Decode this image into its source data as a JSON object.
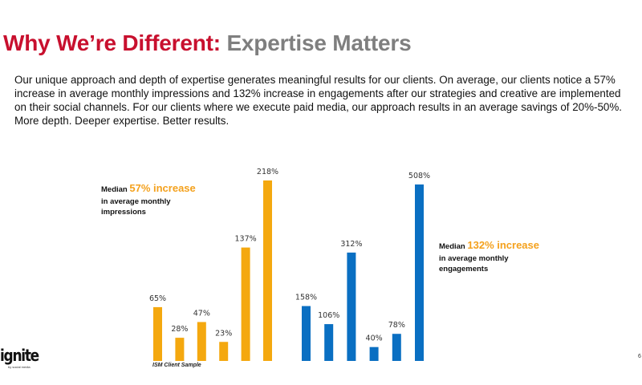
{
  "title": {
    "part1": "Why We’re Different:",
    "part2": "Expertise Matters"
  },
  "body": "Our unique approach and depth of expertise generates meaningful results for our clients. On average, our clients notice a 57% increase in average monthly impressions and 132% increase in engagements after our strategies and creative are implemented on their social channels. For our clients where we execute paid media, our approach results in an average savings of 20%-50%. More depth. Deeper expertise. Better results.",
  "notes": {
    "impressions": {
      "prefix": "Median",
      "highlight": "57% increase",
      "line2": "in average monthly",
      "line3": "impressions"
    },
    "engagements": {
      "prefix": "Median",
      "highlight": "132% increase",
      "line2": "in average monthly",
      "line3": "engagements"
    }
  },
  "sample_label": "ISM Client Sample",
  "page_number": "6",
  "logo": {
    "text": "ignite",
    "subtext": "by social media"
  },
  "chart_data": {
    "type": "bar",
    "grid": false,
    "series": [
      {
        "values": [
          65,
          28,
          47,
          23,
          137,
          218
        ],
        "labels": [
          "65%",
          "28%",
          "47%",
          "23%",
          "137%",
          "218%"
        ],
        "color": "#f4a80f"
      },
      {
        "values": [
          158,
          106,
          312,
          40,
          78,
          508
        ],
        "labels": [
          "158%",
          "106%",
          "312%",
          "40%",
          "78%",
          "508%"
        ],
        "color": "#0a6fc2"
      }
    ]
  }
}
